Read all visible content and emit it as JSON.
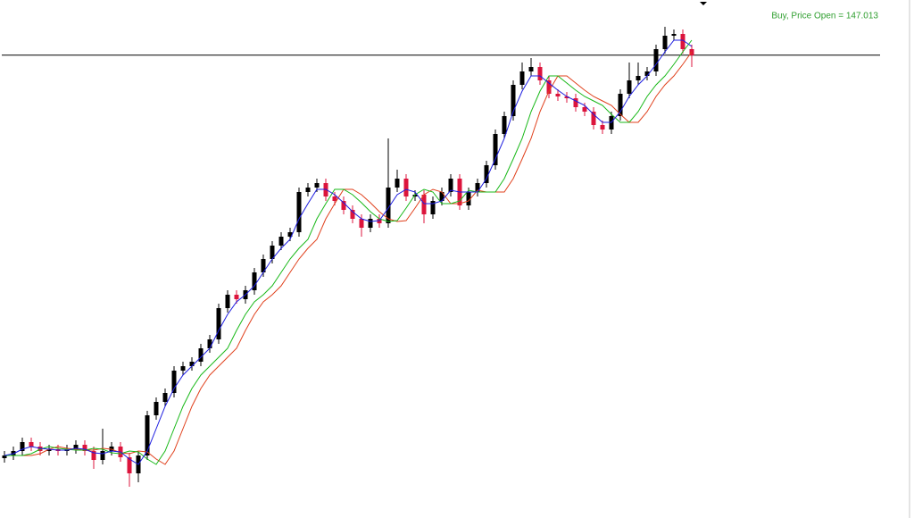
{
  "chart_data": {
    "type": "candlestick",
    "annotation": "Buy, Price Open = 147.013",
    "price_line": 147.013,
    "ylim": [
      141.83,
      147.63
    ],
    "up_color": "#000000",
    "down_color": "#dc143c",
    "price_line_color": "#000000",
    "annotation_color": "#2e9e2e",
    "open": [
      142.5,
      142.53,
      142.58,
      142.68,
      142.63,
      142.58,
      142.6,
      142.58,
      142.6,
      142.65,
      142.58,
      142.48,
      142.58,
      142.63,
      142.51,
      142.33,
      142.53,
      142.98,
      143.13,
      143.23,
      143.48,
      143.53,
      143.58,
      143.73,
      143.83,
      144.18,
      144.33,
      144.28,
      144.38,
      144.58,
      144.73,
      144.88,
      144.98,
      145.03,
      145.48,
      145.53,
      145.58,
      145.43,
      145.38,
      145.28,
      145.18,
      145.08,
      145.18,
      145.13,
      145.53,
      145.63,
      145.43,
      145.45,
      145.23,
      145.38,
      145.48,
      145.63,
      145.33,
      145.48,
      145.58,
      145.78,
      146.13,
      146.33,
      146.68,
      146.83,
      146.88,
      146.73,
      146.58,
      146.55,
      146.53,
      146.43,
      146.38,
      146.23,
      146.18,
      146.33,
      146.58,
      146.73,
      146.78,
      146.83,
      147.08,
      147.23,
      147.25,
      147.08
    ],
    "high": [
      142.58,
      142.63,
      142.73,
      142.73,
      142.68,
      142.65,
      142.65,
      142.65,
      142.7,
      142.7,
      142.63,
      142.83,
      142.68,
      142.68,
      142.56,
      142.58,
      143.03,
      143.18,
      143.28,
      143.53,
      143.58,
      143.63,
      143.78,
      143.88,
      144.23,
      144.38,
      144.38,
      144.43,
      144.63,
      144.78,
      144.93,
      145.03,
      145.08,
      145.53,
      145.58,
      145.63,
      145.63,
      145.48,
      145.43,
      145.33,
      145.23,
      145.23,
      145.23,
      146.08,
      145.73,
      145.68,
      145.5,
      145.5,
      145.43,
      145.53,
      145.68,
      145.68,
      145.53,
      145.63,
      145.83,
      146.18,
      146.38,
      146.73,
      146.93,
      146.98,
      146.93,
      146.78,
      146.63,
      146.6,
      146.58,
      146.48,
      146.43,
      146.28,
      146.38,
      146.63,
      146.93,
      146.93,
      146.88,
      147.13,
      147.33,
      147.3,
      147.3,
      147.13
    ],
    "low": [
      142.45,
      142.48,
      142.53,
      142.58,
      142.53,
      142.53,
      142.53,
      142.53,
      142.55,
      142.53,
      142.38,
      142.43,
      142.53,
      142.46,
      142.18,
      142.23,
      142.48,
      142.93,
      143.08,
      143.18,
      143.43,
      143.48,
      143.53,
      143.68,
      143.78,
      144.13,
      144.23,
      144.23,
      144.33,
      144.53,
      144.68,
      144.83,
      144.93,
      144.98,
      145.43,
      145.48,
      145.38,
      145.33,
      145.23,
      145.13,
      144.98,
      145.03,
      145.08,
      145.08,
      145.48,
      145.38,
      145.38,
      145.13,
      145.18,
      145.33,
      145.43,
      145.28,
      145.28,
      145.43,
      145.53,
      145.73,
      146.08,
      146.28,
      146.63,
      146.78,
      146.68,
      146.53,
      146.5,
      146.48,
      146.38,
      146.33,
      146.18,
      146.13,
      146.13,
      146.28,
      146.53,
      146.68,
      146.73,
      146.78,
      147.03,
      147.18,
      147.03,
      146.88
    ],
    "close": [
      142.53,
      142.58,
      142.68,
      142.63,
      142.58,
      142.6,
      142.58,
      142.6,
      142.65,
      142.58,
      142.48,
      142.58,
      142.63,
      142.51,
      142.33,
      142.53,
      142.98,
      143.13,
      143.23,
      143.48,
      143.53,
      143.58,
      143.73,
      143.83,
      144.18,
      144.33,
      144.28,
      144.38,
      144.58,
      144.73,
      144.88,
      144.98,
      145.03,
      145.48,
      145.53,
      145.58,
      145.43,
      145.38,
      145.28,
      145.18,
      145.08,
      145.18,
      145.13,
      145.53,
      145.63,
      145.43,
      145.45,
      145.23,
      145.38,
      145.48,
      145.63,
      145.33,
      145.48,
      145.58,
      145.78,
      146.13,
      146.33,
      146.68,
      146.83,
      146.88,
      146.73,
      146.58,
      146.55,
      146.53,
      146.43,
      146.38,
      146.23,
      146.18,
      146.33,
      146.58,
      146.73,
      146.78,
      146.83,
      147.08,
      147.23,
      147.25,
      147.08,
      147.01
    ],
    "moving_averages": [
      {
        "color": "#e0401c",
        "values": [
          142.53,
          142.53,
          142.53,
          142.53,
          142.55,
          142.6,
          142.63,
          142.61,
          142.6,
          142.59,
          142.59,
          142.61,
          142.6,
          142.56,
          142.55,
          142.58,
          142.57,
          142.49,
          142.43,
          142.58,
          142.83,
          143.08,
          143.28,
          143.43,
          143.53,
          143.63,
          143.73,
          143.93,
          144.11,
          144.25,
          144.33,
          144.43,
          144.58,
          144.73,
          144.85,
          144.95,
          145.18,
          145.35,
          145.51,
          145.51,
          145.45,
          145.36,
          145.26,
          145.18,
          145.15,
          145.16,
          145.3,
          145.45,
          145.51,
          145.48,
          145.35,
          145.35,
          145.38,
          145.5,
          145.48,
          145.48,
          145.48,
          145.63,
          145.85,
          146.08,
          146.38,
          146.61,
          146.78,
          146.78,
          146.7,
          146.62,
          146.55,
          146.5,
          146.45,
          146.35,
          146.26,
          146.26,
          146.38,
          146.55,
          146.68,
          146.78,
          146.91,
          147.05
        ]
      },
      {
        "color": "#18b818",
        "values": [
          142.53,
          142.53,
          142.53,
          142.55,
          142.6,
          142.63,
          142.61,
          142.6,
          142.59,
          142.59,
          142.61,
          142.6,
          142.56,
          142.55,
          142.58,
          142.57,
          142.49,
          142.43,
          142.58,
          142.83,
          143.08,
          143.28,
          143.43,
          143.53,
          143.63,
          143.73,
          143.93,
          144.11,
          144.25,
          144.33,
          144.43,
          144.58,
          144.73,
          144.85,
          144.95,
          145.18,
          145.35,
          145.51,
          145.51,
          145.45,
          145.36,
          145.26,
          145.18,
          145.15,
          145.16,
          145.3,
          145.45,
          145.51,
          145.48,
          145.35,
          145.35,
          145.38,
          145.5,
          145.48,
          145.48,
          145.48,
          145.63,
          145.85,
          146.08,
          146.38,
          146.61,
          146.78,
          146.78,
          146.7,
          146.62,
          146.55,
          146.5,
          146.45,
          146.35,
          146.26,
          146.26,
          146.38,
          146.55,
          146.68,
          146.78,
          146.91,
          147.05,
          147.18
        ]
      },
      {
        "color": "#1c1ce0",
        "values": [
          142.53,
          142.55,
          142.6,
          142.63,
          142.61,
          142.6,
          142.59,
          142.59,
          142.61,
          142.6,
          142.56,
          142.55,
          142.58,
          142.57,
          142.49,
          142.43,
          142.58,
          142.83,
          143.08,
          143.28,
          143.43,
          143.53,
          143.63,
          143.73,
          143.93,
          144.11,
          144.25,
          144.33,
          144.43,
          144.58,
          144.73,
          144.85,
          144.95,
          145.18,
          145.35,
          145.51,
          145.51,
          145.45,
          145.36,
          145.26,
          145.18,
          145.15,
          145.16,
          145.3,
          145.45,
          145.51,
          145.48,
          145.35,
          145.35,
          145.38,
          145.5,
          145.48,
          145.48,
          145.48,
          145.63,
          145.85,
          146.08,
          146.38,
          146.61,
          146.78,
          146.78,
          146.7,
          146.62,
          146.55,
          146.5,
          146.45,
          146.35,
          146.26,
          146.26,
          146.38,
          146.55,
          146.68,
          146.78,
          146.91,
          147.05,
          147.18,
          147.18,
          147.11
        ]
      }
    ]
  }
}
